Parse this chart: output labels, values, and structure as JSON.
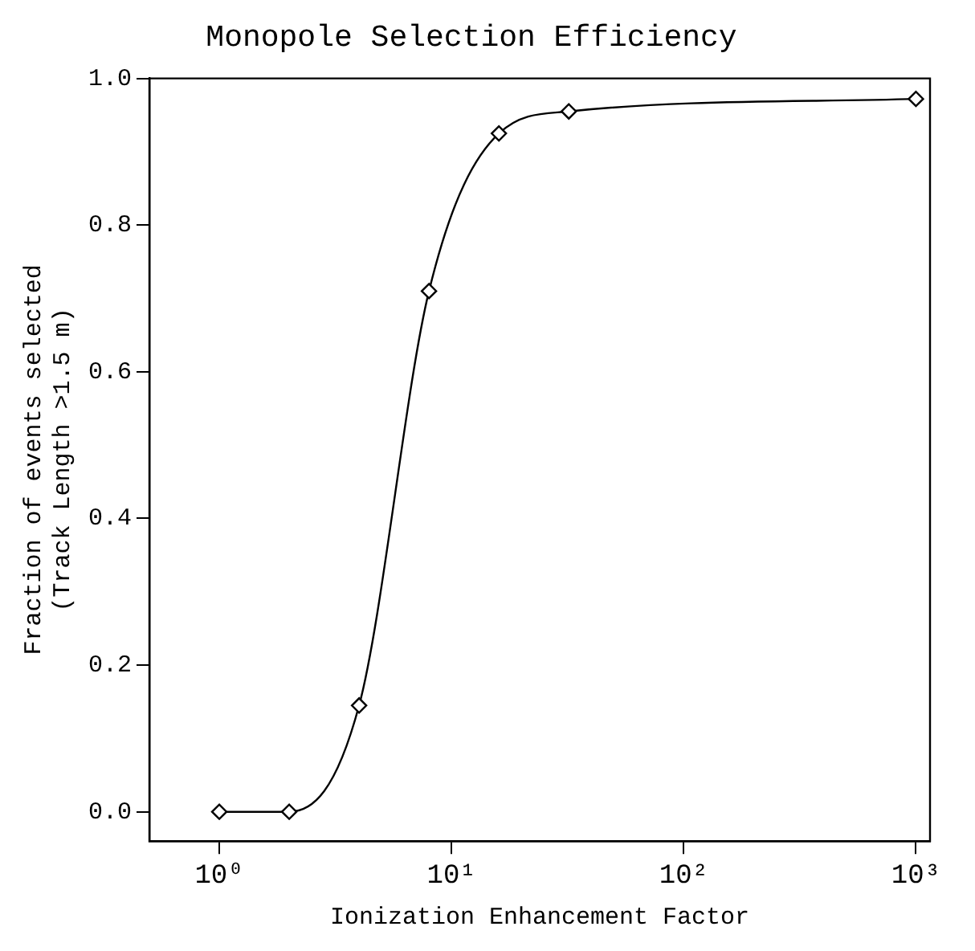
{
  "chart_data": {
    "type": "line",
    "title": "Monopole Selection Efficiency",
    "xlabel": "Ionization Enhancement Factor",
    "ylabel": "Fraction of events selected\n(Track Length >1.5 m)",
    "x": [
      1,
      2,
      4,
      8,
      16,
      32,
      1000
    ],
    "series": [
      {
        "color": "#000000",
        "values": [
          0,
          0,
          0.145,
          0.71,
          0.925,
          0.955,
          0.972
        ]
      }
    ],
    "log": "x",
    "marker": "diamond",
    "line_style": "solid",
    "xlim": [
      0.5,
      1150
    ],
    "xticks": [
      {
        "value": 1,
        "label": "10⁰"
      },
      {
        "value": 10,
        "label": "10¹"
      },
      {
        "value": 100,
        "label": "10²"
      },
      {
        "value": 1000,
        "label": "10³"
      }
    ],
    "ylim": [
      -0.04,
      1.0
    ],
    "yticks": [
      {
        "value": 0,
        "label": "0.0"
      },
      {
        "value": 0.2,
        "label": "0.2"
      },
      {
        "value": 0.4,
        "label": "0.4"
      },
      {
        "value": 0.6,
        "label": "0.6"
      },
      {
        "value": 0.8,
        "label": "0.8"
      },
      {
        "value": 1.0,
        "label": "1.0"
      }
    ]
  }
}
